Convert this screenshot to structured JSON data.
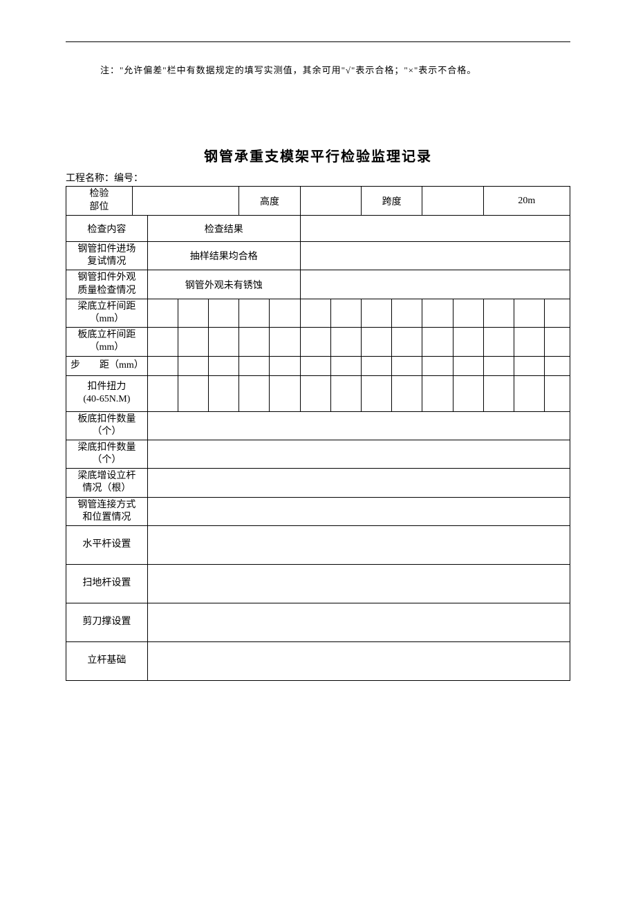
{
  "note": "注：\"允许偏差\"栏中有数据规定的填写实测值，其余可用\"√\"表示合格；\"×\"表示不合格。",
  "title": "钢管承重支模架平行检验监理记录",
  "subtitle": "工程名称：编号：",
  "row1": {
    "c1": "检验\n部位",
    "c3": "高度",
    "c5": "跨度",
    "c6": "20m"
  },
  "row2": {
    "c1": "检查内容",
    "c2": "检查结果"
  },
  "rows": {
    "r3_c1": "钢管扣件进场\n复试情况",
    "r3_c2": "抽样结果均合格",
    "r4_c1": "钢管扣件外观\n质量检查情况",
    "r4_c2": "钢管外观未有锈蚀",
    "r5_c1": "梁底立杆间距\n（mm）",
    "r6_c1": "板底立杆间距\n（mm）",
    "r7_c1": "步　　距（mm）",
    "r8_c1": "扣件扭力\n(40-65N.M)",
    "r9_c1": "板底扣件数量\n（个）",
    "r10_c1": "梁底扣件数量\n（个）",
    "r11_c1": "梁底增设立杆\n情况（根）",
    "r12_c1": "钢管连接方式\n和位置情况",
    "r13_c1": "水平杆设置",
    "r14_c1": "扫地杆设置",
    "r15_c1": "剪刀撑设置",
    "r16_c1": "立杆基础"
  },
  "colors": {
    "border": "#000000",
    "text": "#000000",
    "bg": "#ffffff"
  }
}
